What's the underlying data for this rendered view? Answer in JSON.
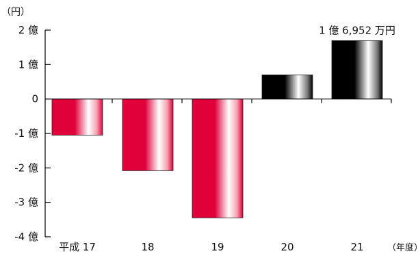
{
  "chart_data": {
    "type": "bar",
    "unit_label": "（円）",
    "xlabel_unit": "（年度）",
    "categories": [
      "平成 17",
      "18",
      "19",
      "20",
      "21"
    ],
    "values": [
      -10500,
      -20800,
      -34500,
      7000,
      16952
    ],
    "ylim": [
      -40000,
      20000
    ],
    "yticks": [
      {
        "value": 20000,
        "label": "2 億"
      },
      {
        "value": 10000,
        "label": "1 億"
      },
      {
        "value": 0,
        "label": "0"
      },
      {
        "value": -10000,
        "label": "-1 億"
      },
      {
        "value": -20000,
        "label": "-2 億"
      },
      {
        "value": -30000,
        "label": "-3 億"
      },
      {
        "value": -40000,
        "label": "-4 億"
      }
    ],
    "annotation": {
      "category_index": 4,
      "text": "1 億 6,952 万円"
    },
    "grid": false,
    "colors": {
      "negative": "#e0003a",
      "positive": "#000000",
      "axis": "#000000"
    }
  }
}
